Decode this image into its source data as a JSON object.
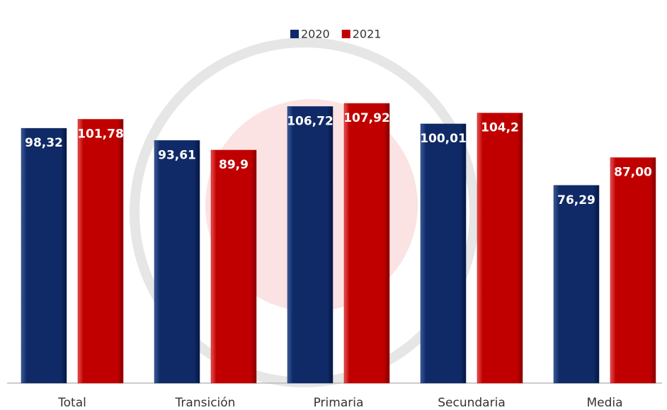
{
  "chart_data": {
    "type": "bar",
    "categories": [
      "Total",
      "Transición",
      "Primaria",
      "Secundaria",
      "Media"
    ],
    "series": [
      {
        "name": "2020",
        "color": "#0f2a66",
        "values": [
          98.32,
          93.61,
          106.72,
          100.01,
          76.29
        ],
        "value_labels": [
          "98,32",
          "93,61",
          "106,72",
          "100,01",
          "76,29"
        ]
      },
      {
        "name": "2021",
        "color": "#c00000",
        "values": [
          101.78,
          89.9,
          107.92,
          104.2,
          87
        ],
        "value_labels": [
          "101,78",
          "89,9",
          "107,92",
          "104,2",
          "87,00"
        ]
      }
    ]
  }
}
